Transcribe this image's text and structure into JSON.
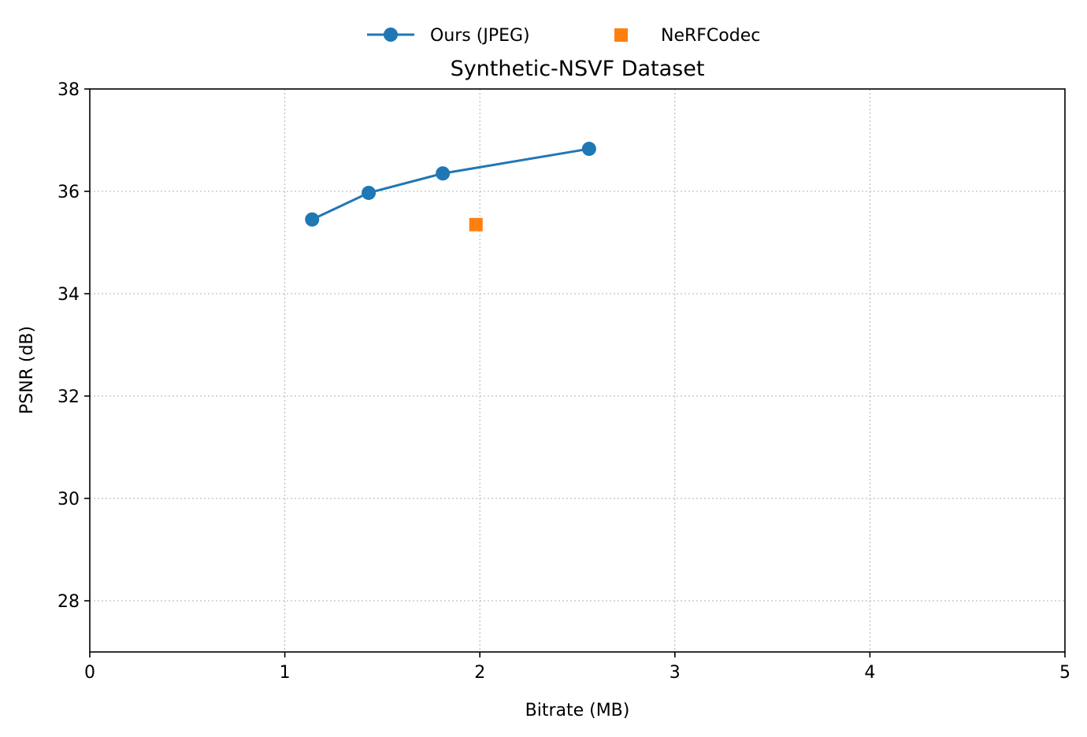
{
  "chart_data": {
    "type": "line",
    "title": "Synthetic-NSVF Dataset",
    "xlabel": "Bitrate (MB)",
    "ylabel": "PSNR (dB)",
    "xlim": [
      0,
      5
    ],
    "ylim": [
      27,
      38
    ],
    "xticks": [
      0,
      1,
      2,
      3,
      4,
      5
    ],
    "yticks": [
      28,
      30,
      32,
      34,
      36,
      38
    ],
    "grid": true,
    "legend_position": "top-center",
    "series": [
      {
        "name": "Ours (JPEG)",
        "style": "line-marker-circle",
        "color": "#1f77b4",
        "x": [
          1.14,
          1.43,
          1.81,
          2.56
        ],
        "y": [
          35.45,
          35.97,
          36.35,
          36.83
        ]
      },
      {
        "name": "NeRFCodec",
        "style": "marker-square",
        "color": "#ff7f0e",
        "x": [
          1.98
        ],
        "y": [
          35.35
        ]
      }
    ]
  }
}
